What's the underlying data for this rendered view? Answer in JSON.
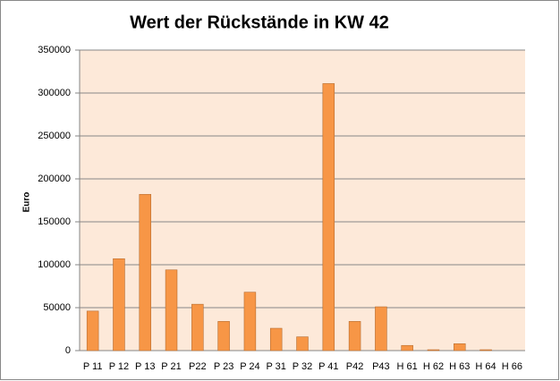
{
  "chart_data": {
    "type": "bar",
    "title": "Wert der Rückstände in KW 42",
    "y_label": "Euro",
    "categories": [
      "P 11",
      "P 12",
      "P 13",
      "P 21",
      "P22",
      "P 23",
      "P 24",
      "P 31",
      "P 32",
      "P 41",
      "P42",
      "P43",
      "H 61",
      "H 62",
      "H 63",
      "H 64",
      "H 66"
    ],
    "values": [
      46000,
      107000,
      182000,
      94000,
      54000,
      34000,
      68000,
      26000,
      16000,
      311000,
      34000,
      51000,
      6000,
      1000,
      8000,
      1000,
      0
    ],
    "color": "#f79646",
    "plot_background": "#fde9d9",
    "ylim": [
      0,
      350000
    ],
    "yticks": [
      0,
      50000,
      100000,
      150000,
      200000,
      250000,
      300000,
      350000
    ],
    "grid": true
  }
}
